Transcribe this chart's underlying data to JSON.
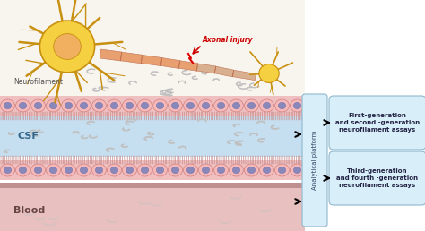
{
  "bg_color": "#ffffff",
  "csf_color": "#c5dff0",
  "blood_color": "#e8c0c0",
  "blood_dark_strip": "#c09090",
  "cell_body_color": "#f5b8b8",
  "cell_nucleus_color": "#8888bb",
  "cell_edge_color": "#d08080",
  "platform_box_color": "#d8eef8",
  "platform_border": "#90b8d0",
  "platform_text": "Analytical platform",
  "box1_text": "First-generation\nand second -generation\nneurofilament assays",
  "box2_text": "Third-generation\nand fourth -generation\nneurofilament assays",
  "csf_label": "CSF",
  "blood_label": "Blood",
  "neurofilament_label": "Neurofilament",
  "axonal_injury_label": "Axonal injury",
  "neuron_color": "#c89010",
  "neuron_body_color": "#f5d040",
  "neuron_nucleus_color": "#f0b060",
  "axon_color": "#e8a080",
  "cilia_color": "#d09090",
  "nf_particle_color": "#cccccc",
  "arrow_color": "#111111",
  "injury_arrow_color": "#cc0000",
  "top_bg": "#f8f4ee"
}
